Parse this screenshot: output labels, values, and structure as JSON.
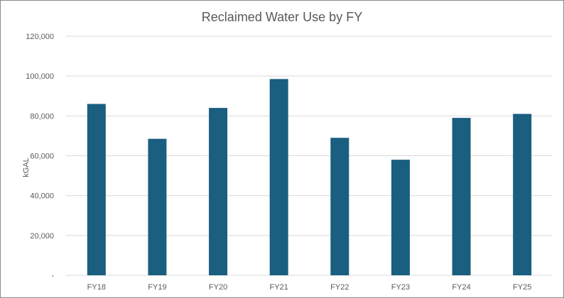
{
  "chart_data": {
    "type": "bar",
    "title": "Reclaimed Water Use by FY",
    "xlabel": "",
    "ylabel": "kGAL",
    "categories": [
      "FY18",
      "FY19",
      "FY20",
      "FY21",
      "FY22",
      "FY23",
      "FY24",
      "FY25"
    ],
    "values": [
      86000,
      68500,
      84000,
      98500,
      69000,
      58000,
      79000,
      81000
    ],
    "ylim": [
      0,
      120000
    ],
    "yticks": [
      0,
      20000,
      40000,
      60000,
      80000,
      100000,
      120000
    ],
    "ytick_labels": [
      "-",
      "20,000",
      "40,000",
      "60,000",
      "80,000",
      "100,000",
      "120,000"
    ],
    "grid": true,
    "legend": "none",
    "bar_color": "#1a5e80",
    "grid_color": "#d9d9d9"
  }
}
